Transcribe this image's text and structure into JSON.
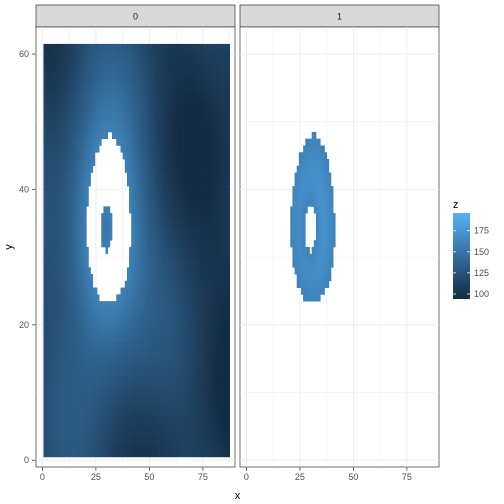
{
  "chart_data": {
    "type": "heatmap",
    "facet_variable": "",
    "facets": [
      "0",
      "1"
    ],
    "xlabel": "x",
    "ylabel": "y",
    "xlim": [
      -3,
      90
    ],
    "ylim": [
      -1,
      64
    ],
    "x_ticks": [
      0,
      25,
      50,
      75
    ],
    "y_ticks": [
      0,
      20,
      40,
      60
    ],
    "legend": {
      "title": "z",
      "position": "right",
      "range": [
        94,
        196
      ],
      "ticks": [
        100,
        125,
        150,
        175
      ],
      "low_color": "#132B43",
      "high_color": "#56B1F7"
    },
    "grid": true,
    "grid_color": "#ebebeb",
    "grid_region": {
      "x": [
        1,
        87
      ],
      "y": [
        1,
        61
      ]
    },
    "facet_assignment_rule": "cells with z above about 160 fall in facet 1; the rest fall in facet 0",
    "hot_region_description": "facet 1 contains a ring-shaped cluster centred near x=30, y=33 with a hole around x=28-33, y=31-38; the same area is blank in facet 0",
    "strip_fill": "#d9d9d9"
  }
}
